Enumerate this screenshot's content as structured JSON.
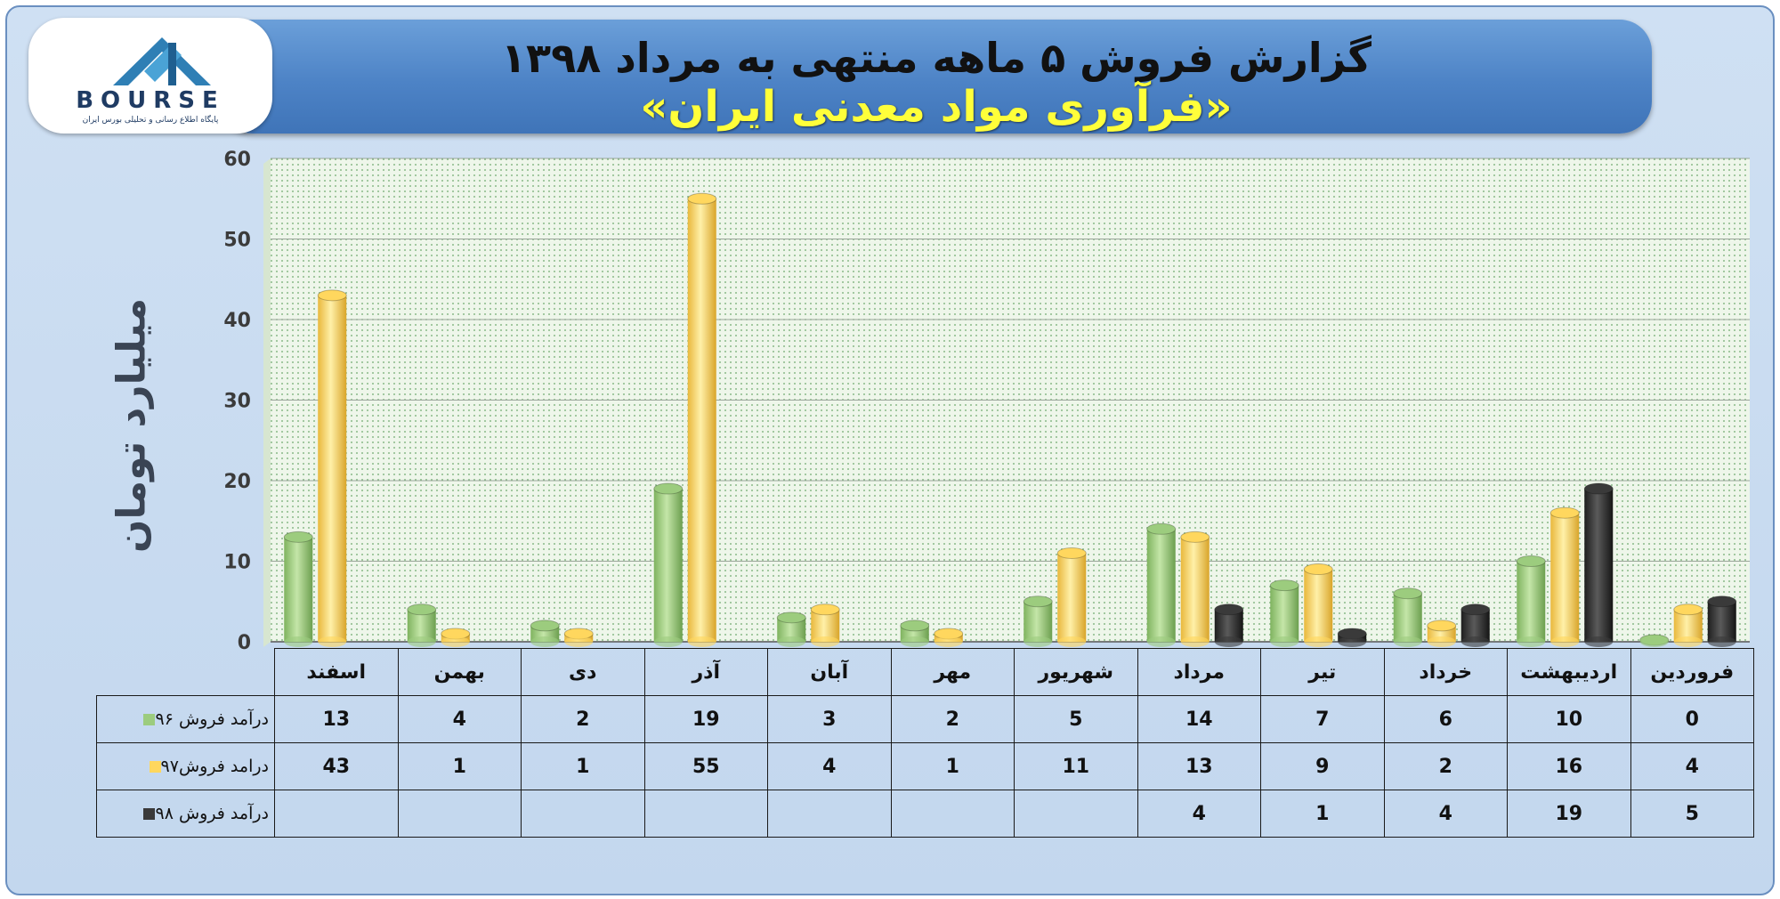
{
  "title": "گزارش فروش ۵ ماهه منتهی به مرداد ۱۳۹۸",
  "subtitle": "«فرآوری مواد معدنی ایران»",
  "logo": {
    "word": "BOURSE",
    "caption": "پایگاه اطلاع رسانی و تحلیلی بورس ایران"
  },
  "colors": {
    "series_96": "#9ccc7e",
    "series_97": "#ffd75e",
    "series_98": "#3a3a3a"
  },
  "chart_data": {
    "type": "bar",
    "ylabel": "میلیارد تومان",
    "ylim": [
      0,
      60
    ],
    "yticks": [
      "0",
      "10",
      "20",
      "30",
      "40",
      "50",
      "60"
    ],
    "grid": true,
    "legend": "data-table",
    "categories": [
      "فروردین",
      "اردیبهشت",
      "خرداد",
      "تیر",
      "مرداد",
      "شهریور",
      "مهر",
      "آبان",
      "آذر",
      "دی",
      "بهمن",
      "اسفند"
    ],
    "series": [
      {
        "name": "درآمد فروش ۹۶",
        "values": [
          0,
          10,
          6,
          7,
          14,
          5,
          2,
          3,
          19,
          2,
          4,
          13
        ],
        "labels": [
          "0",
          "10",
          "6",
          "7",
          "14",
          "5",
          "2",
          "3",
          "19",
          "2",
          "4",
          "13"
        ]
      },
      {
        "name": "درامد فروش۹۷",
        "values": [
          4,
          16,
          2,
          9,
          13,
          11,
          1,
          4,
          55,
          1,
          1,
          43
        ],
        "labels": [
          "4",
          "16",
          "2",
          "9",
          "13",
          "11",
          "1",
          "4",
          "55",
          "1",
          "1",
          "43"
        ]
      },
      {
        "name": "درآمد فروش ۹۸",
        "values": [
          5,
          19,
          4,
          1,
          4,
          null,
          null,
          null,
          null,
          null,
          null,
          null
        ],
        "labels": [
          "5",
          "19",
          "4",
          "1",
          "4",
          "",
          "",
          "",
          "",
          "",
          "",
          ""
        ]
      }
    ]
  }
}
